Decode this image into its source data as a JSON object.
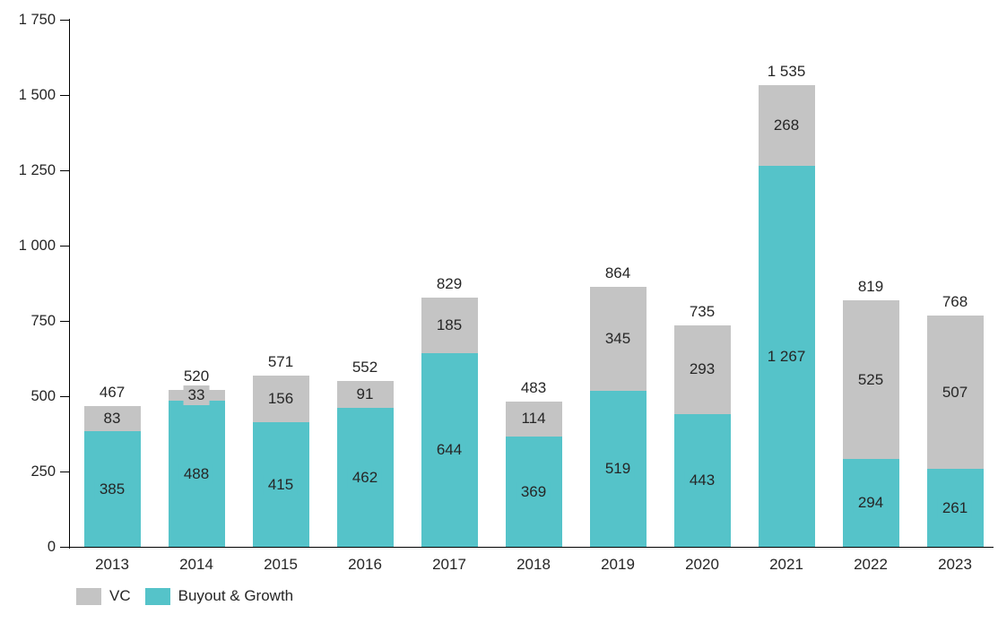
{
  "chart": {
    "legend": {
      "items": [
        {
          "label": "VC",
          "color": "#C4C4C4"
        },
        {
          "label": "Buyout & Growth",
          "color": "#55C3C9"
        }
      ]
    }
  },
  "chart_data": {
    "type": "bar",
    "stacked": true,
    "title": "",
    "xlabel": "",
    "ylabel": "",
    "categories": [
      "2013",
      "2014",
      "2015",
      "2016",
      "2017",
      "2018",
      "2019",
      "2020",
      "2021",
      "2022",
      "2023"
    ],
    "series": [
      {
        "name": "Buyout & Growth",
        "color": "#55C3C9",
        "values": [
          385,
          488,
          415,
          462,
          644,
          369,
          519,
          443,
          1267,
          294,
          261
        ]
      },
      {
        "name": "VC",
        "color": "#C4C4C4",
        "values": [
          83,
          33,
          156,
          91,
          185,
          114,
          345,
          293,
          268,
          525,
          507
        ]
      }
    ],
    "totals": [
      467,
      520,
      571,
      552,
      829,
      483,
      864,
      735,
      1535,
      819,
      768
    ],
    "ylim": [
      0,
      1750
    ],
    "y_tick_step": 250,
    "y_tick_labels": [
      "0",
      "250",
      "500",
      "750",
      "1 000",
      "1 250",
      "1 500",
      "1 750"
    ],
    "grid": false,
    "legend_position": "bottom-left",
    "number_format": "space-thousands",
    "axis_color": "#000000",
    "text_color": "#262626",
    "background_color": "#FFFFFF"
  }
}
